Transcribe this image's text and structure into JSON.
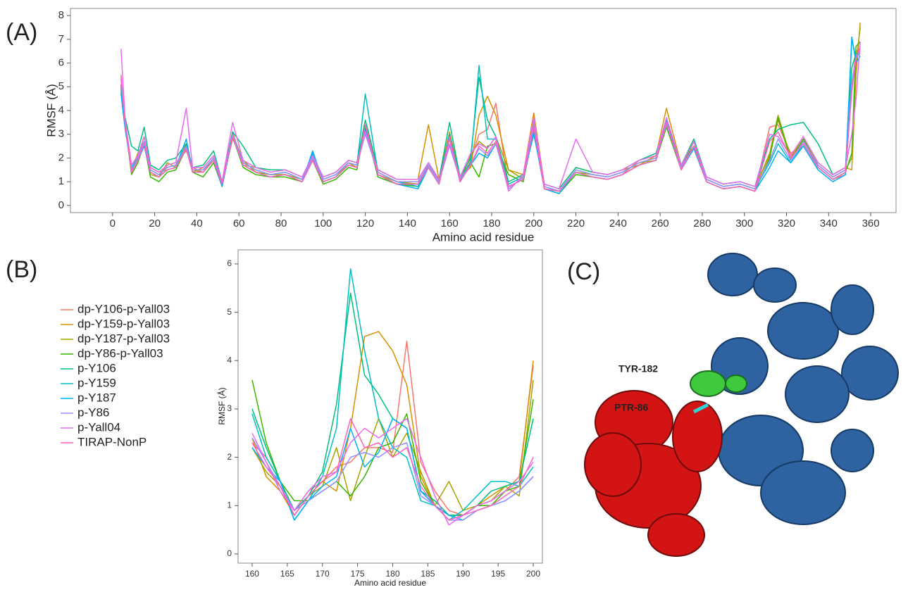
{
  "panel_labels": [
    "(A)",
    "(B)",
    "(C)"
  ],
  "structure": {
    "labels": [
      "TYR-182",
      "PTR-86"
    ]
  },
  "chart_data": [
    {
      "type": "line",
      "y_label": "RMSF (Å)",
      "x_label": "Amino acid residue",
      "grid": false,
      "xlim": [
        -20,
        372
      ],
      "ylim": [
        -0.3,
        8.3
      ],
      "xticks": [
        0,
        20,
        40,
        60,
        80,
        100,
        120,
        140,
        160,
        180,
        200,
        220,
        240,
        260,
        280,
        300,
        320,
        340,
        360
      ],
      "yticks": [
        0,
        1,
        2,
        3,
        4,
        5,
        6,
        7,
        8
      ],
      "x": [
        4,
        6,
        9,
        12,
        15,
        18,
        22,
        26,
        30,
        35,
        38,
        43,
        48,
        52,
        57,
        62,
        68,
        75,
        82,
        90,
        95,
        100,
        106,
        112,
        116,
        120,
        126,
        135,
        145,
        150,
        155,
        160,
        165,
        170,
        174,
        178,
        182,
        188,
        195,
        200,
        205,
        212,
        220,
        228,
        235,
        242,
        250,
        258,
        263,
        270,
        276,
        282,
        290,
        298,
        305,
        312,
        316,
        322,
        328,
        335,
        342,
        348,
        351,
        353,
        355
      ],
      "series": [
        {
          "color": "#F8766D",
          "values": [
            5.5,
            3.4,
            1.6,
            1.9,
            2.6,
            1.4,
            1.2,
            1.7,
            1.8,
            2.3,
            1.6,
            1.4,
            1.9,
            0.9,
            2.8,
            1.9,
            1.4,
            1.2,
            1.3,
            1.0,
            1.9,
            1.0,
            1.2,
            1.7,
            1.6,
            3.3,
            1.3,
            0.9,
            0.9,
            1.8,
            1.0,
            2.8,
            1.0,
            1.9,
            3.0,
            3.2,
            4.3,
            0.8,
            1.1,
            3.6,
            0.7,
            0.6,
            1.4,
            1.2,
            1.1,
            1.3,
            1.9,
            2.1,
            3.5,
            1.5,
            2.4,
            1.0,
            0.7,
            0.8,
            0.6,
            3.3,
            3.4,
            2.2,
            2.6,
            1.6,
            1.1,
            1.3,
            5.0,
            6.5,
            6.6
          ]
        },
        {
          "color": "#D89000",
          "values": [
            5.0,
            3.6,
            1.4,
            2.1,
            2.9,
            1.6,
            1.4,
            1.5,
            1.6,
            2.4,
            1.4,
            1.6,
            2.1,
            1.0,
            3.1,
            1.7,
            1.6,
            1.4,
            1.5,
            1.2,
            2.1,
            1.2,
            1.4,
            1.9,
            1.8,
            3.4,
            1.5,
            1.1,
            1.1,
            3.4,
            1.1,
            3.1,
            1.2,
            1.6,
            3.8,
            4.6,
            3.8,
            1.5,
            1.3,
            3.9,
            0.9,
            0.7,
            1.6,
            1.4,
            1.3,
            1.5,
            1.7,
            2.1,
            4.1,
            1.7,
            2.5,
            1.2,
            0.9,
            1.0,
            0.8,
            2.1,
            3.6,
            2.1,
            2.7,
            1.8,
            1.3,
            1.6,
            1.5,
            5.5,
            7.7
          ]
        },
        {
          "color": "#A3A500",
          "values": [
            4.9,
            3.3,
            1.5,
            2.2,
            2.7,
            1.3,
            1.2,
            1.8,
            1.6,
            2.6,
            1.5,
            1.4,
            2.0,
            0.8,
            3.0,
            1.9,
            1.4,
            1.3,
            1.3,
            1.1,
            2.0,
            1.0,
            1.2,
            1.8,
            1.6,
            3.2,
            1.3,
            1.0,
            0.9,
            1.6,
            0.9,
            3.0,
            1.0,
            2.1,
            2.7,
            2.4,
            2.9,
            1.5,
            1.1,
            3.6,
            0.8,
            0.6,
            1.4,
            1.3,
            1.2,
            1.4,
            1.8,
            1.9,
            3.4,
            1.6,
            2.7,
            1.1,
            0.8,
            0.9,
            0.7,
            2.2,
            3.8,
            2.0,
            2.9,
            1.7,
            1.2,
            1.5,
            2.0,
            6.0,
            7.5
          ]
        },
        {
          "color": "#39B600",
          "values": [
            5.1,
            3.4,
            1.3,
            1.8,
            2.6,
            1.2,
            1.0,
            1.4,
            1.5,
            2.4,
            1.4,
            1.2,
            1.8,
            0.8,
            2.9,
            1.6,
            1.3,
            1.2,
            1.2,
            1.0,
            1.9,
            0.9,
            1.1,
            1.6,
            1.5,
            3.3,
            1.2,
            0.9,
            0.8,
            1.6,
            0.9,
            2.9,
            1.0,
            1.8,
            1.2,
            2.5,
            2.6,
            1.3,
            1.0,
            3.2,
            0.7,
            0.5,
            1.3,
            1.2,
            1.1,
            1.3,
            1.7,
            1.9,
            3.3,
            1.5,
            2.7,
            1.0,
            0.7,
            0.8,
            0.6,
            2.0,
            3.7,
            1.9,
            2.8,
            1.6,
            1.1,
            1.4,
            2.2,
            6.7,
            6.9
          ]
        },
        {
          "color": "#00BF7D",
          "values": [
            4.8,
            3.7,
            2.5,
            2.3,
            3.3,
            1.7,
            1.5,
            1.9,
            2.0,
            2.6,
            1.6,
            1.7,
            2.3,
            1.0,
            3.1,
            2.5,
            1.6,
            1.5,
            1.5,
            1.2,
            2.1,
            1.2,
            1.4,
            1.9,
            1.8,
            3.6,
            1.5,
            1.1,
            1.1,
            1.8,
            1.1,
            3.5,
            1.2,
            2.0,
            5.4,
            3.6,
            2.9,
            1.0,
            1.3,
            3.3,
            0.9,
            0.7,
            1.6,
            1.4,
            1.3,
            1.5,
            1.9,
            2.2,
            3.5,
            1.7,
            2.8,
            1.2,
            0.9,
            1.0,
            0.8,
            2.8,
            3.2,
            3.4,
            3.5,
            2.6,
            1.3,
            1.6,
            5.8,
            6.4,
            6.4
          ]
        },
        {
          "color": "#00BFC4",
          "values": [
            5.0,
            3.3,
            1.6,
            2.0,
            2.7,
            1.5,
            1.3,
            1.6,
            1.7,
            2.5,
            1.5,
            1.5,
            2.0,
            0.9,
            3.0,
            1.8,
            1.5,
            1.3,
            1.4,
            1.1,
            2.2,
            1.1,
            1.3,
            1.8,
            1.7,
            4.7,
            1.4,
            1.0,
            0.8,
            1.7,
            1.0,
            3.0,
            1.1,
            1.8,
            5.9,
            2.8,
            2.8,
            0.9,
            1.2,
            3.0,
            0.8,
            0.6,
            1.5,
            1.3,
            1.2,
            1.4,
            1.8,
            2.0,
            3.6,
            1.6,
            2.5,
            1.1,
            0.8,
            0.9,
            0.7,
            1.8,
            2.6,
            1.8,
            2.6,
            1.6,
            1.1,
            1.4,
            7.0,
            6.2,
            6.5
          ]
        },
        {
          "color": "#00B0F6",
          "values": [
            4.7,
            3.2,
            1.5,
            1.9,
            2.5,
            1.4,
            1.2,
            1.5,
            1.6,
            2.8,
            1.4,
            1.4,
            1.9,
            0.8,
            2.9,
            1.7,
            1.4,
            1.2,
            1.3,
            1.0,
            2.3,
            1.0,
            1.2,
            1.7,
            1.6,
            3.2,
            1.3,
            0.9,
            0.7,
            1.6,
            0.9,
            2.9,
            1.0,
            1.7,
            2.2,
            2.0,
            2.6,
            0.8,
            1.1,
            3.1,
            0.7,
            0.5,
            1.4,
            1.2,
            1.1,
            1.3,
            1.7,
            1.9,
            3.5,
            1.5,
            2.4,
            1.0,
            0.7,
            0.8,
            0.6,
            1.6,
            2.3,
            1.8,
            2.5,
            1.5,
            1.0,
            1.3,
            7.1,
            6.0,
            6.3
          ]
        },
        {
          "color": "#9590FF",
          "values": [
            5.3,
            3.5,
            1.5,
            2.0,
            2.7,
            1.5,
            1.3,
            1.6,
            1.7,
            2.5,
            1.5,
            1.5,
            2.0,
            0.9,
            3.0,
            1.8,
            1.5,
            1.3,
            1.4,
            1.1,
            2.0,
            1.1,
            1.3,
            1.8,
            1.7,
            3.0,
            1.4,
            1.0,
            1.0,
            1.7,
            1.0,
            2.5,
            1.1,
            1.7,
            2.4,
            2.1,
            2.6,
            0.7,
            1.2,
            3.4,
            0.8,
            0.6,
            1.5,
            1.3,
            1.2,
            1.4,
            1.8,
            2.0,
            3.4,
            1.6,
            2.5,
            1.1,
            0.8,
            0.9,
            0.7,
            1.9,
            2.8,
            1.9,
            2.7,
            1.7,
            1.2,
            1.5,
            5.2,
            6.2,
            6.6
          ]
        },
        {
          "color": "#E76BF3",
          "values": [
            6.6,
            3.6,
            1.7,
            2.1,
            2.9,
            1.6,
            1.4,
            1.7,
            1.8,
            4.1,
            1.6,
            1.6,
            2.1,
            1.0,
            3.5,
            1.9,
            1.6,
            1.4,
            1.5,
            1.2,
            2.1,
            1.2,
            1.4,
            1.9,
            1.8,
            3.1,
            1.5,
            1.1,
            1.1,
            1.8,
            1.1,
            2.6,
            1.2,
            2.2,
            2.6,
            2.4,
            2.9,
            0.6,
            1.3,
            3.7,
            0.9,
            0.7,
            2.8,
            1.4,
            1.3,
            1.5,
            1.9,
            2.1,
            3.7,
            1.7,
            2.7,
            1.2,
            0.9,
            1.0,
            0.8,
            3.0,
            2.9,
            2.1,
            2.9,
            1.8,
            1.3,
            1.6,
            3.0,
            4.5,
            6.9
          ]
        },
        {
          "color": "#FF62BC",
          "values": [
            5.4,
            3.4,
            1.4,
            1.9,
            2.6,
            1.4,
            1.2,
            1.5,
            1.6,
            2.4,
            1.4,
            1.4,
            1.9,
            0.9,
            2.9,
            1.7,
            1.4,
            1.2,
            1.3,
            1.0,
            1.9,
            1.0,
            1.2,
            1.7,
            1.6,
            3.4,
            1.3,
            0.9,
            0.9,
            1.6,
            0.9,
            2.9,
            1.0,
            1.7,
            2.5,
            2.2,
            2.7,
            0.8,
            1.1,
            3.3,
            0.7,
            0.6,
            1.4,
            1.2,
            1.1,
            1.3,
            1.7,
            1.9,
            3.5,
            1.5,
            2.5,
            1.0,
            0.7,
            0.8,
            0.6,
            2.7,
            3.1,
            2.0,
            2.6,
            1.6,
            1.1,
            1.4,
            4.8,
            6.2,
            6.7
          ]
        }
      ]
    },
    {
      "type": "line",
      "y_label": "RMSF (Å)",
      "x_label": "Amino acid residue",
      "grid": false,
      "xlim": [
        158,
        201.3
      ],
      "ylim": [
        -0.19,
        6.29
      ],
      "xticks": [
        160,
        165,
        170,
        175,
        180,
        185,
        190,
        195,
        200
      ],
      "yticks": [
        0,
        1,
        2,
        3,
        4,
        5,
        6
      ],
      "x": [
        160,
        162,
        164,
        166,
        168,
        170,
        172,
        174,
        176,
        178,
        180,
        182,
        184,
        186,
        188,
        190,
        192,
        194,
        196,
        198,
        200
      ],
      "series": [
        {
          "name": "dp-Y106-p-Yall03",
          "color": "#F8766D",
          "values": [
            2.3,
            2.0,
            1.5,
            0.9,
            1.3,
            1.5,
            1.8,
            1.9,
            2.2,
            2.2,
            2.1,
            4.4,
            1.9,
            1.3,
            0.9,
            0.8,
            1.0,
            1.1,
            1.3,
            1.6,
            3.9
          ]
        },
        {
          "name": "dp-Y159-p-Yall03",
          "color": "#D89000",
          "values": [
            2.4,
            1.6,
            1.3,
            0.8,
            1.2,
            1.5,
            1.3,
            2.6,
            4.5,
            4.6,
            4.2,
            3.5,
            1.6,
            1.0,
            0.8,
            0.8,
            1.0,
            1.2,
            1.4,
            1.5,
            4.0
          ]
        },
        {
          "name": "dp-Y187-p-Yall03",
          "color": "#A3A500",
          "values": [
            2.2,
            1.7,
            1.4,
            0.8,
            1.2,
            1.4,
            2.2,
            1.1,
            2.0,
            2.8,
            2.0,
            2.5,
            1.7,
            1.0,
            1.5,
            0.9,
            1.0,
            1.1,
            1.4,
            1.2,
            3.6
          ]
        },
        {
          "name": "dp-Y86-p-Yall03",
          "color": "#39B600",
          "values": [
            3.6,
            2.3,
            1.5,
            1.1,
            1.1,
            1.3,
            1.5,
            1.2,
            1.6,
            2.2,
            2.3,
            2.9,
            1.5,
            1.0,
            0.8,
            0.8,
            1.0,
            1.0,
            1.3,
            1.4,
            3.2
          ]
        },
        {
          "name": "p-Y106",
          "color": "#00BF7D",
          "values": [
            3.0,
            2.2,
            1.5,
            0.9,
            1.2,
            1.7,
            3.1,
            5.4,
            3.7,
            3.3,
            2.8,
            2.6,
            1.3,
            1.1,
            0.8,
            0.8,
            1.0,
            1.3,
            1.4,
            1.5,
            2.8
          ]
        },
        {
          "name": "p-Y159",
          "color": "#00BFC4",
          "values": [
            2.9,
            2.0,
            1.5,
            0.7,
            1.1,
            1.6,
            2.6,
            5.9,
            4.2,
            2.8,
            2.2,
            2.0,
            1.1,
            1.0,
            0.7,
            0.9,
            1.2,
            1.5,
            1.5,
            1.4,
            1.8
          ]
        },
        {
          "name": "p-Y187",
          "color": "#00B0F6",
          "values": [
            2.2,
            1.8,
            1.5,
            0.7,
            1.1,
            1.4,
            1.6,
            2.6,
            1.8,
            2.1,
            2.8,
            2.6,
            1.3,
            1.0,
            0.8,
            0.7,
            0.9,
            1.0,
            1.1,
            1.3,
            1.6
          ]
        },
        {
          "name": "p-Y86",
          "color": "#9590FF",
          "values": [
            2.4,
            1.9,
            1.4,
            0.9,
            1.1,
            1.3,
            1.5,
            2.0,
            2.1,
            2.0,
            2.2,
            2.3,
            1.2,
            1.0,
            0.7,
            0.7,
            0.9,
            1.0,
            1.1,
            1.3,
            1.6
          ]
        },
        {
          "name": "p-Yall04",
          "color": "#E76BF3",
          "values": [
            2.5,
            1.9,
            1.3,
            0.9,
            1.3,
            1.6,
            1.7,
            2.3,
            2.6,
            2.4,
            2.6,
            2.8,
            2.0,
            1.2,
            0.6,
            0.8,
            1.0,
            1.1,
            1.3,
            1.5,
            1.9
          ]
        },
        {
          "name": "TIRAP-NonP",
          "color": "#FF62BC",
          "values": [
            2.3,
            1.8,
            1.4,
            0.8,
            1.2,
            1.5,
            1.7,
            2.8,
            2.2,
            2.3,
            2.0,
            2.2,
            1.4,
            1.0,
            0.7,
            0.8,
            0.9,
            1.0,
            1.2,
            1.4,
            2.0
          ]
        }
      ]
    }
  ]
}
